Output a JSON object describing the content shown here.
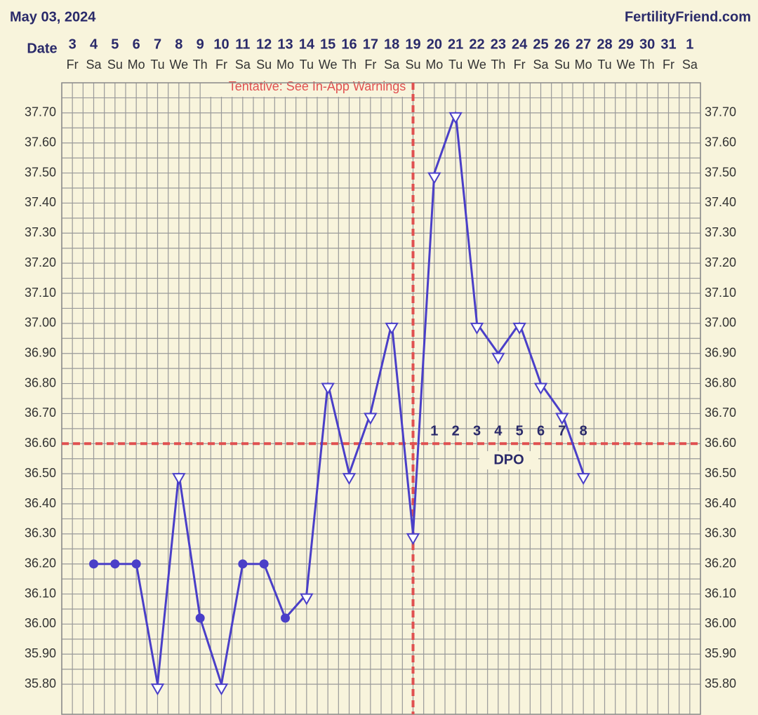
{
  "chart_data": {
    "type": "line",
    "title": "May 03, 2024",
    "brand": "FertilityFriend.com",
    "x_label": "Date",
    "categories": [
      "3",
      "4",
      "5",
      "6",
      "7",
      "8",
      "9",
      "10",
      "11",
      "12",
      "13",
      "14",
      "15",
      "16",
      "17",
      "18",
      "19",
      "20",
      "21",
      "22",
      "23",
      "24",
      "25",
      "26",
      "27",
      "28",
      "29",
      "30",
      "31",
      "1"
    ],
    "weekdays": [
      "Fr",
      "Sa",
      "Su",
      "Mo",
      "Tu",
      "We",
      "Th",
      "Fr",
      "Sa",
      "Su",
      "Mo",
      "Tu",
      "We",
      "Th",
      "Fr",
      "Sa",
      "Su",
      "Mo",
      "Tu",
      "We",
      "Th",
      "Fr",
      "Sa",
      "Su",
      "Mo",
      "Tu",
      "We",
      "Th",
      "Fr",
      "Sa"
    ],
    "series": [
      {
        "color": "#4a3fc8",
        "values": [
          null,
          36.2,
          36.2,
          36.2,
          35.8,
          36.5,
          36.02,
          35.8,
          36.2,
          36.2,
          36.02,
          36.1,
          36.8,
          36.5,
          36.7,
          37.0,
          36.3,
          37.5,
          37.7,
          37.0,
          36.9,
          37.0,
          36.8,
          36.7,
          36.5,
          null,
          null,
          null,
          null,
          null
        ],
        "markers": [
          null,
          "circle",
          "circle",
          "circle",
          "triangle",
          "triangle",
          "circle",
          "triangle",
          "circle",
          "circle",
          "circle",
          "triangle",
          "triangle",
          "triangle",
          "triangle",
          "triangle",
          "triangle",
          "triangle",
          "triangle",
          "triangle",
          "triangle",
          "triangle",
          "triangle",
          "triangle",
          "triangle",
          null,
          null,
          null,
          null,
          null
        ]
      }
    ],
    "ylim": [
      35.7,
      37.8
    ],
    "yticks": [
      {
        "value": 35.8,
        "label": "35.80"
      },
      {
        "value": 35.9,
        "label": "35.90"
      },
      {
        "value": 36.0,
        "label": "36.00"
      },
      {
        "value": 36.1,
        "label": "36.10"
      },
      {
        "value": 36.2,
        "label": "36.20"
      },
      {
        "value": 36.3,
        "label": "36.30"
      },
      {
        "value": 36.4,
        "label": "36.40"
      },
      {
        "value": 36.5,
        "label": "36.50"
      },
      {
        "value": 36.6,
        "label": "36.60"
      },
      {
        "value": 36.7,
        "label": "36.70"
      },
      {
        "value": 36.8,
        "label": "36.80"
      },
      {
        "value": 36.9,
        "label": "36.90"
      },
      {
        "value": 37.0,
        "label": "37.00"
      },
      {
        "value": 37.1,
        "label": "37.10"
      },
      {
        "value": 37.2,
        "label": "37.20"
      },
      {
        "value": 37.3,
        "label": "37.30"
      },
      {
        "value": 37.4,
        "label": "37.40"
      },
      {
        "value": 37.5,
        "label": "37.50"
      },
      {
        "value": 37.6,
        "label": "37.60"
      },
      {
        "value": 37.7,
        "label": "37.70"
      }
    ],
    "grid": true,
    "coverline": 36.6,
    "ovulation": "19",
    "reference_color": "#e05050",
    "dpo_labels": [
      "1",
      "2",
      "3",
      "4",
      "5",
      "6",
      "7",
      "8"
    ],
    "dpo_title": "DPO",
    "annotation": "Tentative: See In-App Warnings"
  }
}
